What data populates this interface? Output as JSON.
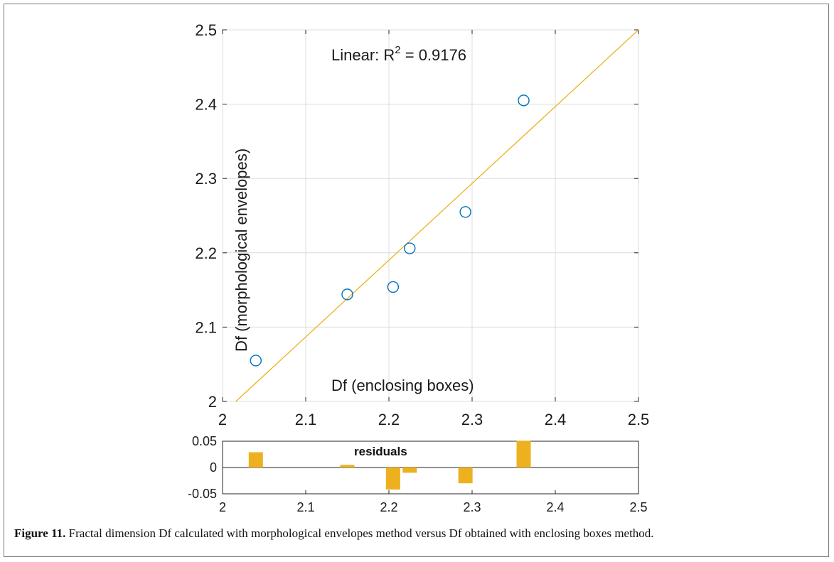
{
  "chart_data": [
    {
      "type": "scatter",
      "annotation_base": "Linear: R",
      "annotation_sup": "2",
      "annotation_rest": " = 0.9176",
      "xlabel": "Df (enclosing boxes)",
      "ylabel": "Df (morphological envelopes)",
      "xlim": [
        2,
        2.5
      ],
      "ylim": [
        2,
        2.5
      ],
      "x_ticks": [
        "2",
        "2.1",
        "2.2",
        "2.3",
        "2.4",
        "2.5"
      ],
      "y_ticks": [
        "2",
        "2.1",
        "2.2",
        "2.3",
        "2.4",
        "2.5"
      ],
      "grid": true,
      "points": [
        {
          "x": 2.04,
          "y": 2.055
        },
        {
          "x": 2.15,
          "y": 2.144
        },
        {
          "x": 2.205,
          "y": 2.154
        },
        {
          "x": 2.225,
          "y": 2.206
        },
        {
          "x": 2.292,
          "y": 2.255
        },
        {
          "x": 2.362,
          "y": 2.405
        }
      ],
      "fit_line": {
        "x": [
          2.016,
          2.5
        ],
        "y": [
          2.0,
          2.5
        ]
      },
      "colors": {
        "points": "#0072bd",
        "fit": "#edb120"
      }
    },
    {
      "type": "bar",
      "title": "residuals",
      "xlim": [
        2,
        2.5
      ],
      "ylim": [
        -0.05,
        0.05
      ],
      "x_ticks": [
        "2",
        "2.1",
        "2.2",
        "2.3",
        "2.4",
        "2.5"
      ],
      "y_ticks": [
        "0.05",
        "0",
        "-0.05"
      ],
      "x": [
        2.04,
        2.15,
        2.205,
        2.225,
        2.292,
        2.362
      ],
      "values": [
        0.029,
        0.005,
        -0.042,
        -0.01,
        -0.03,
        0.051
      ],
      "colors": {
        "bars": "#edb120"
      }
    }
  ],
  "caption": {
    "label": "Figure 11.",
    "text": " Fractal dimension Df calculated with morphological envelopes method versus Df obtained with enclosing boxes method."
  }
}
